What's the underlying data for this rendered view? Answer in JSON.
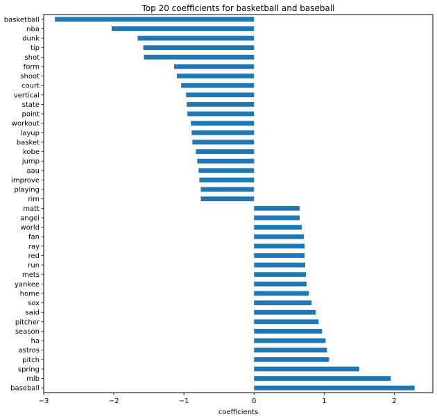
{
  "chart_data": {
    "type": "bar",
    "orientation": "horizontal",
    "title": "Top 20 coefficients for basketball and baseball",
    "xlabel": "coefficients",
    "ylabel": "",
    "xlim": [
      -3.0,
      2.55
    ],
    "xticks": [
      -3,
      -2,
      -1,
      0,
      1,
      2
    ],
    "xtick_labels": [
      "−3",
      "−2",
      "−1",
      "0",
      "1",
      "2"
    ],
    "bar_color": "#1f77b4",
    "grid": false,
    "categories": [
      "basketball",
      "nba",
      "dunk",
      "tip",
      "shot",
      "form",
      "shoot",
      "court",
      "vertical",
      "state",
      "point",
      "workout",
      "layup",
      "basket",
      "kobe",
      "jump",
      "aau",
      "improve",
      "playing",
      "rim",
      "matt",
      "angel",
      "world",
      "fan",
      "ray",
      "red",
      "run",
      "mets",
      "yankee",
      "home",
      "sox",
      "said",
      "pitcher",
      "season",
      "ha",
      "astros",
      "pitch",
      "spring",
      "mlb",
      "baseball"
    ],
    "values": [
      -2.84,
      -2.03,
      -1.66,
      -1.58,
      -1.57,
      -1.14,
      -1.1,
      -1.04,
      -0.97,
      -0.96,
      -0.95,
      -0.9,
      -0.89,
      -0.88,
      -0.83,
      -0.81,
      -0.79,
      -0.78,
      -0.76,
      -0.76,
      0.65,
      0.65,
      0.68,
      0.71,
      0.72,
      0.72,
      0.73,
      0.74,
      0.75,
      0.78,
      0.82,
      0.88,
      0.92,
      0.97,
      1.02,
      1.04,
      1.07,
      1.5,
      1.95,
      2.29
    ]
  }
}
